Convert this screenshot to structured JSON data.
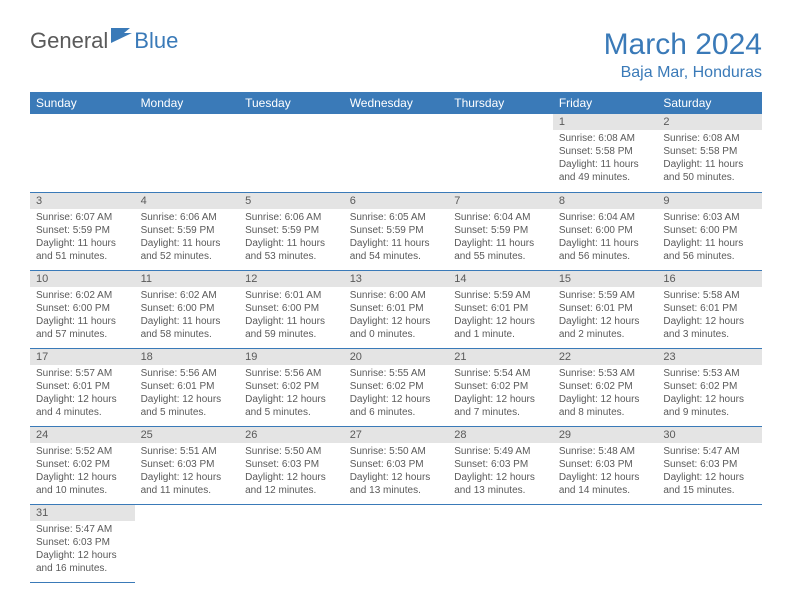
{
  "logo": {
    "part1": "General",
    "part2": "Blue"
  },
  "title": "March 2024",
  "location": "Baja Mar, Honduras",
  "colors": {
    "brand": "#3a7ab8",
    "text": "#5a5a5a",
    "dayHeaderBg": "#e4e4e4",
    "white": "#ffffff"
  },
  "dayHeaders": [
    "Sunday",
    "Monday",
    "Tuesday",
    "Wednesday",
    "Thursday",
    "Friday",
    "Saturday"
  ],
  "weeks": [
    [
      null,
      null,
      null,
      null,
      null,
      {
        "n": "1",
        "sr": "Sunrise: 6:08 AM",
        "ss": "Sunset: 5:58 PM",
        "dl": "Daylight: 11 hours and 49 minutes."
      },
      {
        "n": "2",
        "sr": "Sunrise: 6:08 AM",
        "ss": "Sunset: 5:58 PM",
        "dl": "Daylight: 11 hours and 50 minutes."
      }
    ],
    [
      {
        "n": "3",
        "sr": "Sunrise: 6:07 AM",
        "ss": "Sunset: 5:59 PM",
        "dl": "Daylight: 11 hours and 51 minutes."
      },
      {
        "n": "4",
        "sr": "Sunrise: 6:06 AM",
        "ss": "Sunset: 5:59 PM",
        "dl": "Daylight: 11 hours and 52 minutes."
      },
      {
        "n": "5",
        "sr": "Sunrise: 6:06 AM",
        "ss": "Sunset: 5:59 PM",
        "dl": "Daylight: 11 hours and 53 minutes."
      },
      {
        "n": "6",
        "sr": "Sunrise: 6:05 AM",
        "ss": "Sunset: 5:59 PM",
        "dl": "Daylight: 11 hours and 54 minutes."
      },
      {
        "n": "7",
        "sr": "Sunrise: 6:04 AM",
        "ss": "Sunset: 5:59 PM",
        "dl": "Daylight: 11 hours and 55 minutes."
      },
      {
        "n": "8",
        "sr": "Sunrise: 6:04 AM",
        "ss": "Sunset: 6:00 PM",
        "dl": "Daylight: 11 hours and 56 minutes."
      },
      {
        "n": "9",
        "sr": "Sunrise: 6:03 AM",
        "ss": "Sunset: 6:00 PM",
        "dl": "Daylight: 11 hours and 56 minutes."
      }
    ],
    [
      {
        "n": "10",
        "sr": "Sunrise: 6:02 AM",
        "ss": "Sunset: 6:00 PM",
        "dl": "Daylight: 11 hours and 57 minutes."
      },
      {
        "n": "11",
        "sr": "Sunrise: 6:02 AM",
        "ss": "Sunset: 6:00 PM",
        "dl": "Daylight: 11 hours and 58 minutes."
      },
      {
        "n": "12",
        "sr": "Sunrise: 6:01 AM",
        "ss": "Sunset: 6:00 PM",
        "dl": "Daylight: 11 hours and 59 minutes."
      },
      {
        "n": "13",
        "sr": "Sunrise: 6:00 AM",
        "ss": "Sunset: 6:01 PM",
        "dl": "Daylight: 12 hours and 0 minutes."
      },
      {
        "n": "14",
        "sr": "Sunrise: 5:59 AM",
        "ss": "Sunset: 6:01 PM",
        "dl": "Daylight: 12 hours and 1 minute."
      },
      {
        "n": "15",
        "sr": "Sunrise: 5:59 AM",
        "ss": "Sunset: 6:01 PM",
        "dl": "Daylight: 12 hours and 2 minutes."
      },
      {
        "n": "16",
        "sr": "Sunrise: 5:58 AM",
        "ss": "Sunset: 6:01 PM",
        "dl": "Daylight: 12 hours and 3 minutes."
      }
    ],
    [
      {
        "n": "17",
        "sr": "Sunrise: 5:57 AM",
        "ss": "Sunset: 6:01 PM",
        "dl": "Daylight: 12 hours and 4 minutes."
      },
      {
        "n": "18",
        "sr": "Sunrise: 5:56 AM",
        "ss": "Sunset: 6:01 PM",
        "dl": "Daylight: 12 hours and 5 minutes."
      },
      {
        "n": "19",
        "sr": "Sunrise: 5:56 AM",
        "ss": "Sunset: 6:02 PM",
        "dl": "Daylight: 12 hours and 5 minutes."
      },
      {
        "n": "20",
        "sr": "Sunrise: 5:55 AM",
        "ss": "Sunset: 6:02 PM",
        "dl": "Daylight: 12 hours and 6 minutes."
      },
      {
        "n": "21",
        "sr": "Sunrise: 5:54 AM",
        "ss": "Sunset: 6:02 PM",
        "dl": "Daylight: 12 hours and 7 minutes."
      },
      {
        "n": "22",
        "sr": "Sunrise: 5:53 AM",
        "ss": "Sunset: 6:02 PM",
        "dl": "Daylight: 12 hours and 8 minutes."
      },
      {
        "n": "23",
        "sr": "Sunrise: 5:53 AM",
        "ss": "Sunset: 6:02 PM",
        "dl": "Daylight: 12 hours and 9 minutes."
      }
    ],
    [
      {
        "n": "24",
        "sr": "Sunrise: 5:52 AM",
        "ss": "Sunset: 6:02 PM",
        "dl": "Daylight: 12 hours and 10 minutes."
      },
      {
        "n": "25",
        "sr": "Sunrise: 5:51 AM",
        "ss": "Sunset: 6:03 PM",
        "dl": "Daylight: 12 hours and 11 minutes."
      },
      {
        "n": "26",
        "sr": "Sunrise: 5:50 AM",
        "ss": "Sunset: 6:03 PM",
        "dl": "Daylight: 12 hours and 12 minutes."
      },
      {
        "n": "27",
        "sr": "Sunrise: 5:50 AM",
        "ss": "Sunset: 6:03 PM",
        "dl": "Daylight: 12 hours and 13 minutes."
      },
      {
        "n": "28",
        "sr": "Sunrise: 5:49 AM",
        "ss": "Sunset: 6:03 PM",
        "dl": "Daylight: 12 hours and 13 minutes."
      },
      {
        "n": "29",
        "sr": "Sunrise: 5:48 AM",
        "ss": "Sunset: 6:03 PM",
        "dl": "Daylight: 12 hours and 14 minutes."
      },
      {
        "n": "30",
        "sr": "Sunrise: 5:47 AM",
        "ss": "Sunset: 6:03 PM",
        "dl": "Daylight: 12 hours and 15 minutes."
      }
    ],
    [
      {
        "n": "31",
        "sr": "Sunrise: 5:47 AM",
        "ss": "Sunset: 6:03 PM",
        "dl": "Daylight: 12 hours and 16 minutes."
      },
      null,
      null,
      null,
      null,
      null,
      null
    ]
  ]
}
